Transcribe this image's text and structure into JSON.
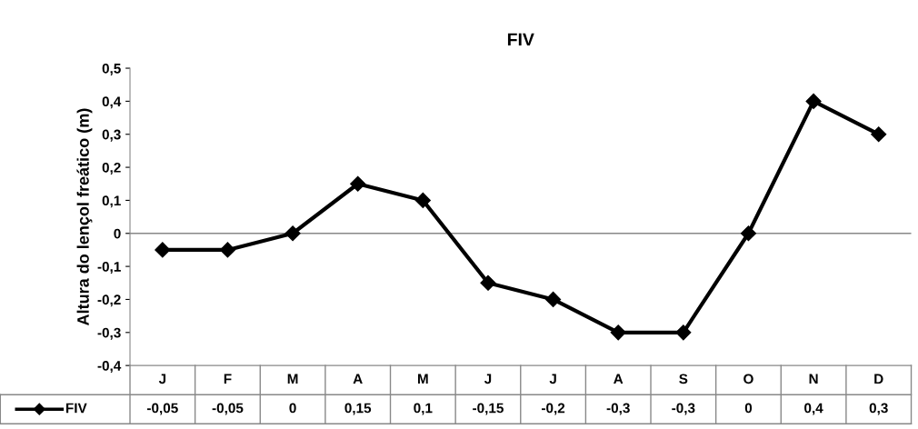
{
  "chart_data": {
    "type": "line",
    "title": "FIV",
    "ylabel": "Altura do lençol freático (m)",
    "categories": [
      "J",
      "F",
      "M",
      "A",
      "M",
      "J",
      "J",
      "A",
      "S",
      "O",
      "N",
      "D"
    ],
    "series": [
      {
        "name": "FIV",
        "color": "#000000",
        "values": [
          -0.05,
          -0.05,
          0,
          0.15,
          0.1,
          -0.15,
          -0.2,
          -0.3,
          -0.3,
          0,
          0.4,
          0.3
        ],
        "value_labels": [
          "-0,05",
          "-0,05",
          "0",
          "0,15",
          "0,1",
          "-0,15",
          "-0,2",
          "-0,3",
          "-0,3",
          "0",
          "0,4",
          "0,3"
        ]
      }
    ],
    "ylim": [
      -0.4,
      0.5
    ],
    "yticks": [
      {
        "value": -0.4,
        "label": "-0,4"
      },
      {
        "value": -0.3,
        "label": "-0,3"
      },
      {
        "value": -0.2,
        "label": "-0,2"
      },
      {
        "value": -0.1,
        "label": "-0,1"
      },
      {
        "value": 0,
        "label": "0"
      },
      {
        "value": 0.1,
        "label": "0,1"
      },
      {
        "value": 0.2,
        "label": "0,2"
      },
      {
        "value": 0.3,
        "label": "0,3"
      },
      {
        "value": 0.4,
        "label": "0,4"
      },
      {
        "value": 0.5,
        "label": "0,5"
      }
    ],
    "ref_lines": [
      {
        "axis": "y",
        "value": 0,
        "color": "#888888"
      }
    ],
    "marker": "diamond",
    "line_style": "solid",
    "legend": "bottom"
  }
}
